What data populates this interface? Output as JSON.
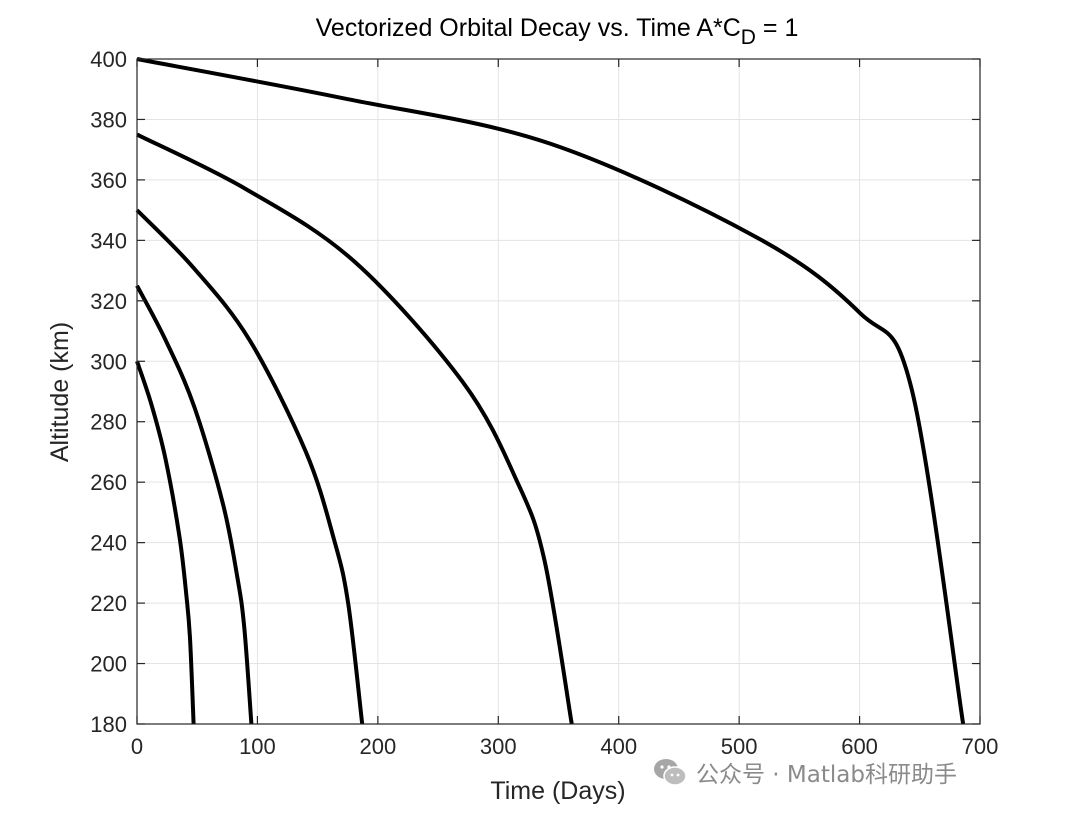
{
  "chart_data": {
    "type": "line",
    "title": {
      "prefix": "Vectorized Orbital Decay vs. Time A*C",
      "subscript": "D",
      "suffix": " = 1"
    },
    "xlabel": "Time (Days)",
    "ylabel": "Altitude (km)",
    "xlim": [
      0,
      700
    ],
    "ylim": [
      180,
      400
    ],
    "xticks": [
      0,
      100,
      200,
      300,
      400,
      500,
      600,
      700
    ],
    "yticks": [
      180,
      200,
      220,
      240,
      260,
      280,
      300,
      320,
      340,
      360,
      380,
      400
    ],
    "grid": true,
    "line_color": "#000000",
    "series": [
      {
        "initial_altitude": 300,
        "decay_time": 47,
        "points": [
          [
            0,
            300
          ],
          [
            11.75,
            286
          ],
          [
            23.5,
            268
          ],
          [
            35.25,
            242
          ],
          [
            41.125,
            222
          ],
          [
            44.06,
            208
          ],
          [
            47,
            180
          ]
        ]
      },
      {
        "initial_altitude": 325,
        "decay_time": 95,
        "points": [
          [
            0,
            325
          ],
          [
            23.75,
            307
          ],
          [
            47.5,
            285
          ],
          [
            71.25,
            253
          ],
          [
            83.125,
            229
          ],
          [
            89.06,
            212
          ],
          [
            95,
            180
          ]
        ]
      },
      {
        "initial_altitude": 350,
        "decay_time": 187,
        "points": [
          [
            0,
            350
          ],
          [
            46.75,
            331
          ],
          [
            93.5,
            307
          ],
          [
            140.25,
            270
          ],
          [
            163.625,
            241
          ],
          [
            175.31,
            220
          ],
          [
            187,
            180
          ]
        ]
      },
      {
        "initial_altitude": 375,
        "decay_time": 361,
        "points": [
          [
            0,
            375
          ],
          [
            90.25,
            357
          ],
          [
            180.5,
            333
          ],
          [
            270.75,
            293
          ],
          [
            315.875,
            260
          ],
          [
            338.44,
            234
          ],
          [
            361,
            180
          ]
        ]
      },
      {
        "initial_altitude": 400,
        "decay_time": 686,
        "points": [
          [
            0,
            400
          ],
          [
            171.5,
            387
          ],
          [
            343,
            372
          ],
          [
            514.5,
            341
          ],
          [
            600.25,
            316
          ],
          [
            643.125,
            291
          ],
          [
            686,
            180
          ]
        ]
      }
    ]
  },
  "watermark": {
    "icon": "wechat-icon",
    "text": "公众号 · Matlab科研助手"
  }
}
